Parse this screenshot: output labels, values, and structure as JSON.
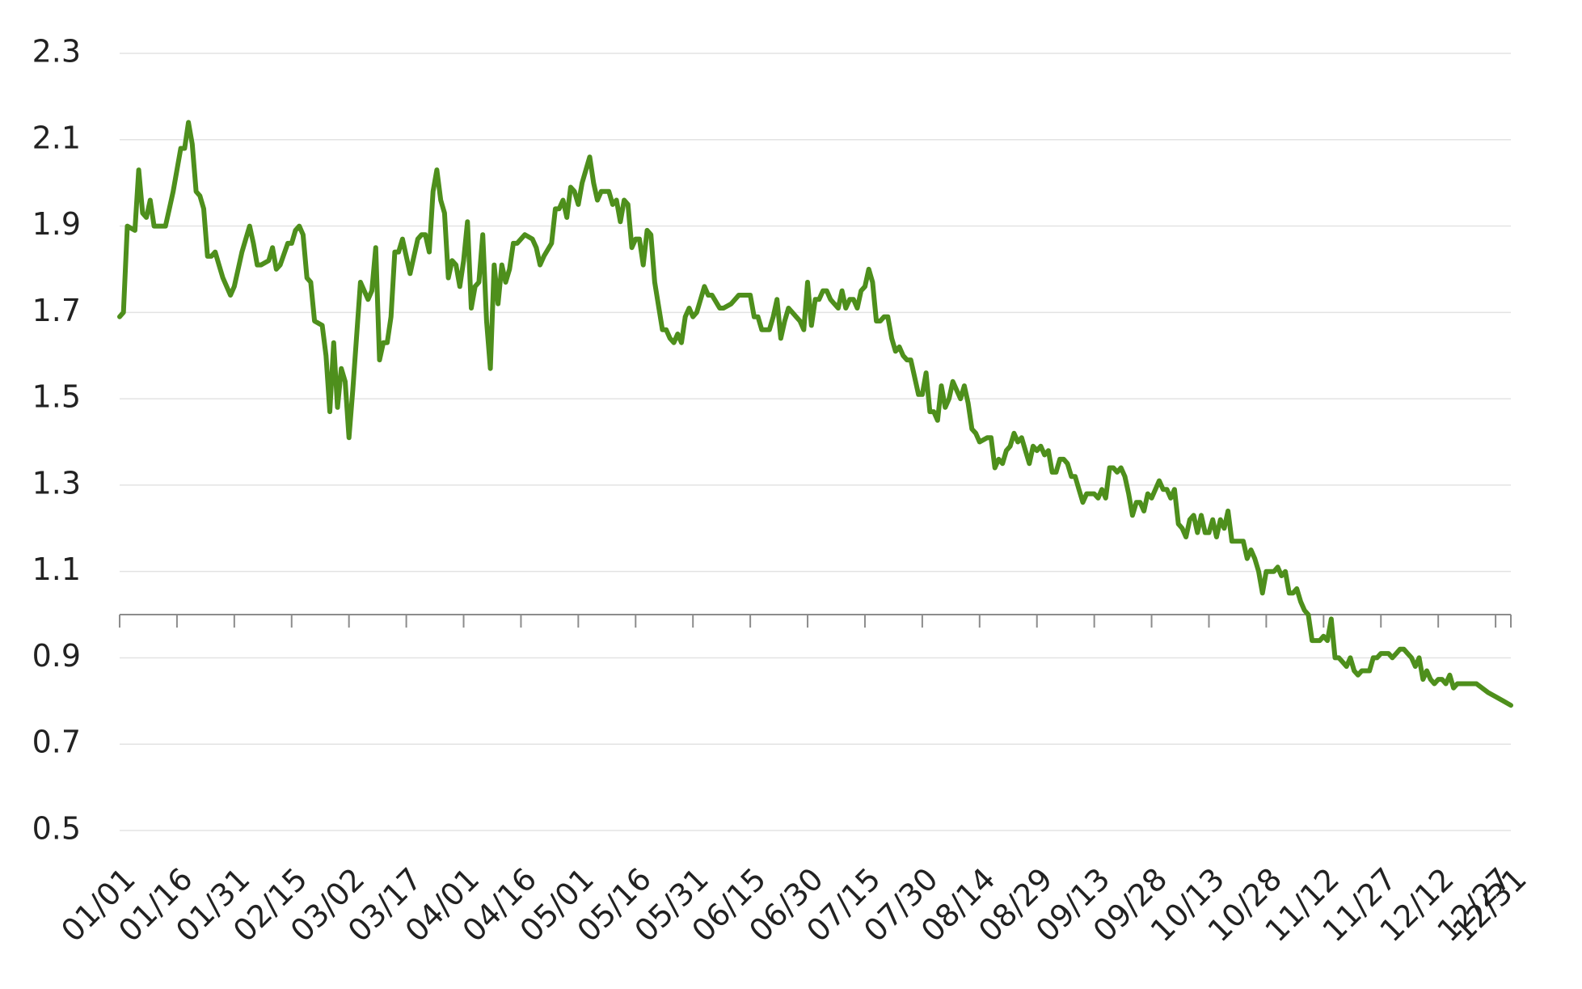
{
  "chart_data": {
    "type": "line",
    "color": "#4e8f1c",
    "grid": true,
    "ylim": [
      0.5,
      2.3
    ],
    "yticks": [
      0.5,
      0.7,
      0.9,
      1.1,
      1.3,
      1.5,
      1.7,
      1.9,
      2.1,
      2.3
    ],
    "xlim": [
      "01/01",
      "12/31"
    ],
    "xticks": [
      "01/01",
      "01/16",
      "01/31",
      "02/15",
      "03/02",
      "03/17",
      "04/01",
      "04/16",
      "05/01",
      "05/16",
      "05/31",
      "06/15",
      "06/30",
      "07/15",
      "07/30",
      "08/14",
      "08/29",
      "09/13",
      "09/28",
      "10/13",
      "10/28",
      "11/12",
      "11/27",
      "12/12",
      "12/27",
      "12/31"
    ],
    "xaxis_crosses": 1.0,
    "x": [
      "01/01",
      "01/02",
      "01/03",
      "01/05",
      "01/06",
      "01/07",
      "01/08",
      "01/09",
      "01/10",
      "01/11",
      "01/13",
      "01/14",
      "01/15",
      "01/17",
      "01/18",
      "01/19",
      "01/20",
      "01/21",
      "01/22",
      "01/23",
      "01/24",
      "01/25",
      "01/26",
      "01/27",
      "01/28",
      "01/30",
      "01/31",
      "02/01",
      "02/02",
      "02/04",
      "02/05",
      "02/06",
      "02/07",
      "02/09",
      "02/10",
      "02/11",
      "02/12",
      "02/14",
      "02/15",
      "02/16",
      "02/17",
      "02/18",
      "02/19",
      "02/20",
      "02/21",
      "02/23",
      "02/24",
      "02/25",
      "02/26",
      "02/27",
      "02/28",
      "03/01",
      "03/02",
      "03/03",
      "03/05",
      "03/06",
      "03/07",
      "03/08",
      "03/09",
      "03/10",
      "03/11",
      "03/12",
      "03/13",
      "03/14",
      "03/15",
      "03/16",
      "03/18",
      "03/20",
      "03/21",
      "03/22",
      "03/23",
      "03/24",
      "03/25",
      "03/26",
      "03/27",
      "03/28",
      "03/29",
      "03/30",
      "03/31",
      "04/01",
      "04/02",
      "04/03",
      "04/04",
      "04/05",
      "04/06",
      "04/07",
      "04/08",
      "04/09",
      "04/10",
      "04/11",
      "04/12",
      "04/13",
      "04/14",
      "04/15",
      "04/16",
      "04/17",
      "04/19",
      "04/20",
      "04/21",
      "04/22",
      "04/24",
      "04/25",
      "04/26",
      "04/27",
      "04/28",
      "04/29",
      "04/30",
      "05/01",
      "05/02",
      "05/03",
      "05/04",
      "05/05",
      "05/06",
      "05/07",
      "05/08",
      "05/09",
      "05/10",
      "05/11",
      "05/12",
      "05/13",
      "05/14",
      "05/15",
      "05/16",
      "05/17",
      "05/18",
      "05/19",
      "05/20",
      "05/21",
      "05/23",
      "05/24",
      "05/25",
      "05/26",
      "05/27",
      "05/28",
      "05/29",
      "05/30",
      "05/31",
      "06/01",
      "06/03",
      "06/04",
      "06/05",
      "06/07",
      "06/08",
      "06/10",
      "06/12",
      "06/13",
      "06/15",
      "06/16",
      "06/17",
      "06/18",
      "06/20",
      "06/21",
      "06/22",
      "06/23",
      "06/24",
      "06/25",
      "06/26",
      "06/27",
      "06/28",
      "06/29",
      "06/30",
      "07/01",
      "07/02",
      "07/03",
      "07/04",
      "07/05",
      "07/06",
      "07/07",
      "07/08",
      "07/09",
      "07/10",
      "07/11",
      "07/12",
      "07/13",
      "07/14",
      "07/15",
      "07/16",
      "07/17",
      "07/18",
      "07/19",
      "07/20",
      "07/21",
      "07/22",
      "07/23",
      "07/24",
      "07/25",
      "07/26",
      "07/27",
      "07/29",
      "07/30",
      "07/31",
      "08/01",
      "08/02",
      "08/03",
      "08/04",
      "08/05",
      "08/06",
      "08/07",
      "08/08",
      "08/09",
      "08/10",
      "08/11",
      "08/12",
      "08/13",
      "08/14",
      "08/16",
      "08/17",
      "08/18",
      "08/19",
      "08/20",
      "08/21",
      "08/22",
      "08/23",
      "08/24",
      "08/25",
      "08/26",
      "08/27",
      "08/28",
      "08/29",
      "08/30",
      "08/31",
      "09/01",
      "09/02",
      "09/03",
      "09/04",
      "09/05",
      "09/06",
      "09/07",
      "09/08",
      "09/09",
      "09/10",
      "09/11",
      "09/13",
      "09/14",
      "09/15",
      "09/16",
      "09/17",
      "09/18",
      "09/19",
      "09/20",
      "09/21",
      "09/22",
      "09/23",
      "09/24",
      "09/25",
      "09/26",
      "09/27",
      "09/28",
      "09/29",
      "09/30",
      "10/01",
      "10/02",
      "10/03",
      "10/04",
      "10/05",
      "10/06",
      "10/07",
      "10/08",
      "10/09",
      "10/10",
      "10/11",
      "10/12",
      "10/13",
      "10/14",
      "10/15",
      "10/16",
      "10/17",
      "10/18",
      "10/19",
      "10/20",
      "10/21",
      "10/22",
      "10/23",
      "10/24",
      "10/25",
      "10/26",
      "10/27",
      "10/28",
      "10/29",
      "10/30",
      "10/31",
      "11/01",
      "11/02",
      "11/03",
      "11/04",
      "11/05",
      "11/06",
      "11/07",
      "11/08",
      "11/09",
      "11/10",
      "11/11",
      "11/12",
      "11/13",
      "11/14",
      "11/15",
      "11/16",
      "11/17",
      "11/18",
      "11/19",
      "11/20",
      "11/21",
      "11/22",
      "11/23",
      "11/24",
      "11/25",
      "11/26",
      "11/27",
      "11/28",
      "11/29",
      "11/30",
      "12/01",
      "12/02",
      "12/03",
      "12/04",
      "12/05",
      "12/06",
      "12/07",
      "12/08",
      "12/09",
      "12/10",
      "12/11",
      "12/12",
      "12/13",
      "12/14",
      "12/15",
      "12/16",
      "12/17",
      "12/18",
      "12/20",
      "12/22",
      "12/25",
      "12/27",
      "12/29",
      "12/31"
    ],
    "values": [
      1.69,
      1.7,
      1.9,
      1.89,
      2.03,
      1.93,
      1.92,
      1.96,
      1.9,
      1.9,
      1.9,
      1.94,
      1.98,
      2.08,
      2.08,
      2.14,
      2.09,
      1.98,
      1.97,
      1.94,
      1.83,
      1.83,
      1.84,
      1.81,
      1.78,
      1.74,
      1.76,
      1.8,
      1.84,
      1.9,
      1.86,
      1.81,
      1.81,
      1.82,
      1.85,
      1.8,
      1.81,
      1.86,
      1.86,
      1.89,
      1.9,
      1.88,
      1.78,
      1.77,
      1.68,
      1.67,
      1.6,
      1.47,
      1.63,
      1.48,
      1.57,
      1.54,
      1.41,
      1.52,
      1.77,
      1.75,
      1.73,
      1.75,
      1.85,
      1.59,
      1.63,
      1.63,
      1.69,
      1.84,
      1.84,
      1.87,
      1.79,
      1.87,
      1.88,
      1.88,
      1.84,
      1.98,
      2.03,
      1.96,
      1.93,
      1.78,
      1.82,
      1.81,
      1.76,
      1.82,
      1.91,
      1.71,
      1.76,
      1.77,
      1.88,
      1.68,
      1.57,
      1.81,
      1.72,
      1.81,
      1.77,
      1.8,
      1.86,
      1.86,
      1.87,
      1.88,
      1.87,
      1.85,
      1.81,
      1.83,
      1.86,
      1.94,
      1.94,
      1.96,
      1.92,
      1.99,
      1.98,
      1.95,
      2.0,
      2.03,
      2.06,
      2.0,
      1.96,
      1.98,
      1.98,
      1.98,
      1.95,
      1.96,
      1.91,
      1.96,
      1.95,
      1.85,
      1.87,
      1.87,
      1.81,
      1.89,
      1.88,
      1.77,
      1.66,
      1.66,
      1.64,
      1.63,
      1.65,
      1.63,
      1.69,
      1.71,
      1.69,
      1.7,
      1.76,
      1.74,
      1.74,
      1.71,
      1.71,
      1.72,
      1.74,
      1.74,
      1.74,
      1.69,
      1.69,
      1.66,
      1.66,
      1.69,
      1.73,
      1.64,
      1.68,
      1.71,
      1.7,
      1.69,
      1.68,
      1.66,
      1.77,
      1.67,
      1.73,
      1.73,
      1.75,
      1.75,
      1.73,
      1.72,
      1.71,
      1.75,
      1.71,
      1.73,
      1.73,
      1.71,
      1.75,
      1.76,
      1.8,
      1.77,
      1.68,
      1.68,
      1.69,
      1.69,
      1.64,
      1.61,
      1.62,
      1.6,
      1.59,
      1.59,
      1.51,
      1.51,
      1.56,
      1.47,
      1.47,
      1.45,
      1.53,
      1.48,
      1.5,
      1.54,
      1.52,
      1.5,
      1.53,
      1.49,
      1.43,
      1.42,
      1.4,
      1.41,
      1.41,
      1.34,
      1.36,
      1.35,
      1.38,
      1.39,
      1.42,
      1.4,
      1.41,
      1.38,
      1.35,
      1.39,
      1.38,
      1.39,
      1.37,
      1.38,
      1.33,
      1.33,
      1.36,
      1.36,
      1.35,
      1.32,
      1.32,
      1.29,
      1.26,
      1.28,
      1.28,
      1.27,
      1.29,
      1.27,
      1.34,
      1.34,
      1.33,
      1.34,
      1.32,
      1.28,
      1.23,
      1.26,
      1.26,
      1.24,
      1.28,
      1.27,
      1.29,
      1.31,
      1.29,
      1.29,
      1.27,
      1.29,
      1.21,
      1.2,
      1.18,
      1.22,
      1.23,
      1.19,
      1.23,
      1.19,
      1.19,
      1.22,
      1.18,
      1.22,
      1.2,
      1.24,
      1.17,
      1.17,
      1.17,
      1.17,
      1.13,
      1.15,
      1.13,
      1.1,
      1.05,
      1.1,
      1.1,
      1.1,
      1.11,
      1.09,
      1.1,
      1.05,
      1.05,
      1.06,
      1.03,
      1.01,
      1.0,
      0.94,
      0.94,
      0.94,
      0.95,
      0.94,
      0.99,
      0.9,
      0.9,
      0.89,
      0.88,
      0.9,
      0.87,
      0.86,
      0.87,
      0.87,
      0.87,
      0.9,
      0.9,
      0.91,
      0.91,
      0.91,
      0.9,
      0.91,
      0.92,
      0.92,
      0.91,
      0.9,
      0.88,
      0.9,
      0.85,
      0.87,
      0.85,
      0.84,
      0.85,
      0.85,
      0.84,
      0.86,
      0.83,
      0.84,
      0.84,
      0.84,
      0.84,
      0.82,
      0.81,
      0.8,
      0.79
    ]
  }
}
